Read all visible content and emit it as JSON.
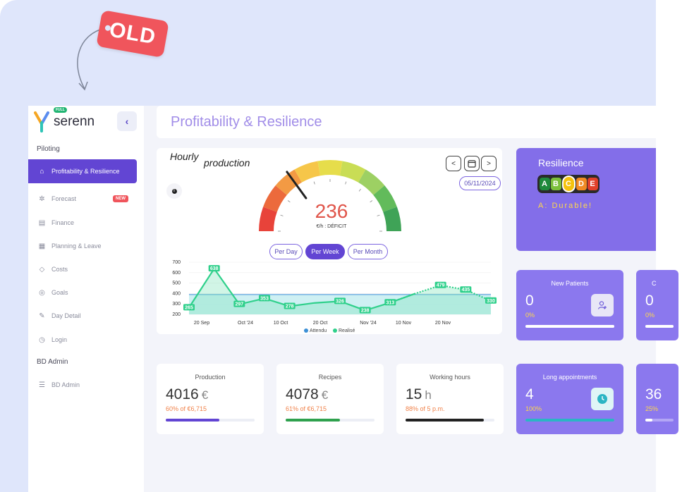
{
  "tag": {
    "label": "OLD"
  },
  "sidebar": {
    "brand": "serenn",
    "badge": "FULL",
    "collapse_icon": "chevron-left-icon",
    "sections": [
      {
        "title": "Piloting"
      },
      {
        "title": "BD Admin"
      }
    ],
    "items": [
      {
        "label": "Profitability & Resilience",
        "icon": "home-icon"
      },
      {
        "label": "Forecast",
        "icon": "crystal-icon",
        "badge": "NEW"
      },
      {
        "label": "Finance",
        "icon": "chart-icon"
      },
      {
        "label": "Planning & Leave",
        "icon": "calendar-icon"
      },
      {
        "label": "Costs",
        "icon": "tag-icon"
      },
      {
        "label": "Goals",
        "icon": "target-icon"
      },
      {
        "label": "Day Detail",
        "icon": "pen-icon"
      },
      {
        "label": "Login",
        "icon": "clock-icon"
      },
      {
        "label": "BD Admin",
        "icon": "database-icon"
      }
    ]
  },
  "header": {
    "title": "Profitability & Resilience"
  },
  "production": {
    "title_part1": "Hourly",
    "title_part2": "production",
    "info": "i",
    "nav": {
      "prev": "<",
      "next": ">"
    },
    "date": "05/11/2024",
    "gauge": {
      "value": "236",
      "unit": "€/h : DÉFICIT",
      "level": 0.3
    },
    "periods": [
      "Per Day",
      "Per Week",
      "Per Month"
    ],
    "active_period": 1
  },
  "chart_data": {
    "type": "line",
    "x_tick_labels": [
      "20 Sep",
      "Oct '24",
      "10 Oct",
      "20 Oct",
      "Nov '24",
      "10 Nov",
      "20 Nov"
    ],
    "ylim": [
      200,
      700
    ],
    "y_ticks": [
      200,
      300,
      400,
      500,
      600,
      700
    ],
    "series": [
      {
        "name": "Attendu",
        "values": [
          390,
          390,
          390,
          390,
          390,
          390,
          390,
          390,
          390,
          390,
          390,
          390,
          390,
          390,
          390,
          390
        ]
      },
      {
        "name": "Realisé",
        "values": [
          265,
          638,
          297,
          353,
          278,
          310,
          326,
          238,
          313,
          400,
          479,
          435,
          330
        ]
      }
    ],
    "data_labels": [
      "265",
      "638",
      "297",
      "353",
      "278",
      "326",
      "238",
      "313",
      "479",
      "435",
      "330"
    ],
    "legend": [
      "Attendu",
      "Realisé"
    ],
    "legend_position": "bottom"
  },
  "resilience": {
    "title": "Resilience",
    "grades": [
      "A",
      "B",
      "C",
      "D",
      "E"
    ],
    "grade_colors": [
      "#1f8a3c",
      "#7bbf3a",
      "#f4c20d",
      "#f08a24",
      "#e1412b"
    ],
    "selected": "C",
    "subtitle": "A: Durable!"
  },
  "stats": [
    {
      "label": "Production",
      "value": "4016",
      "unit": "€",
      "sub": "60% of €6,715",
      "progress": 0.6,
      "color": "#6245d3"
    },
    {
      "label": "Recipes",
      "value": "4078",
      "unit": "€",
      "sub": "61% of €6,715",
      "progress": 0.61,
      "color": "#2fa14e"
    },
    {
      "label": "Working hours",
      "value": "15",
      "unit": "h",
      "sub": "88% of 5 p.m.",
      "progress": 0.88,
      "color": "#222222"
    }
  ],
  "kpis": [
    {
      "label": "New Patients",
      "value": "0",
      "sub": "0%",
      "icon": "add-user-icon",
      "progress": 1
    },
    {
      "label": "C",
      "value": "0",
      "sub": "0%"
    },
    {
      "label": "Long appointments",
      "value": "4",
      "sub": "100%",
      "icon": "clock-icon",
      "progress": 1
    },
    {
      "label": "",
      "value": "36",
      "sub": "25%"
    }
  ]
}
